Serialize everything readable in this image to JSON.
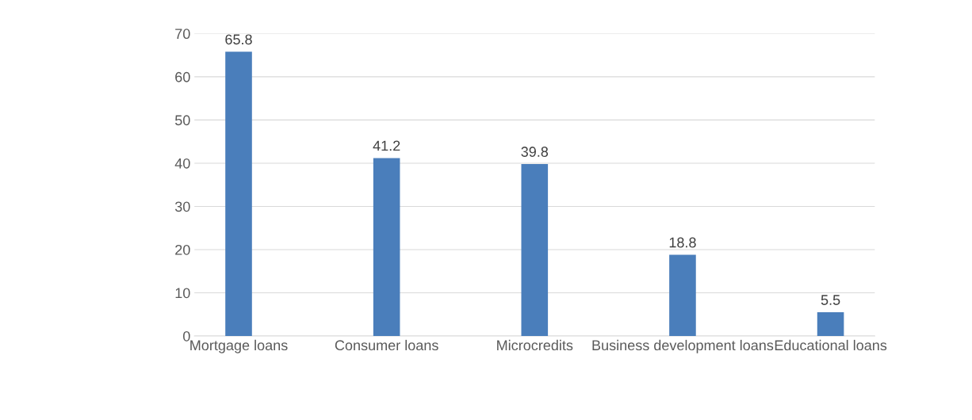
{
  "chart_data": {
    "type": "bar",
    "categories": [
      "Mortgage loans",
      "Consumer loans",
      "Microcredits",
      "Business development loans",
      "Educational loans"
    ],
    "values": [
      65.8,
      41.2,
      39.8,
      18.8,
      5.5
    ],
    "color": "#4a7ebb",
    "ylim": [
      0,
      70
    ],
    "yticks": [
      0,
      10,
      20,
      30,
      40,
      50,
      60,
      70
    ],
    "grid": "y",
    "data_labels": true
  }
}
